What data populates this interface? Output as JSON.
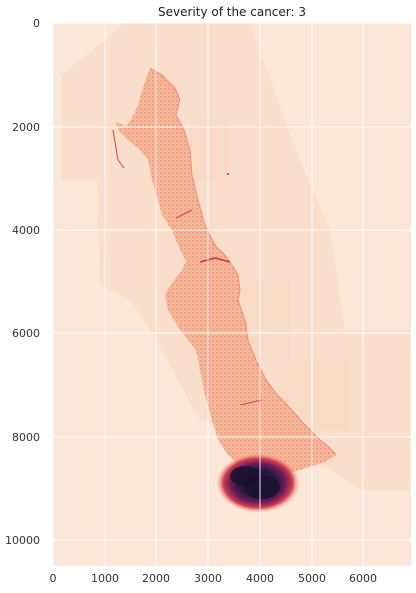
{
  "chart_data": {
    "type": "heatmap",
    "title": "Severity of the cancer: 3",
    "xlabel": "",
    "ylabel": "",
    "xlim": [
      0,
      6900
    ],
    "ylim": [
      10500,
      0
    ],
    "x_ticks": [
      "0",
      "1000",
      "2000",
      "3000",
      "4000",
      "5000",
      "6000"
    ],
    "y_ticks": [
      "0",
      "2000",
      "4000",
      "6000",
      "8000",
      "10000"
    ],
    "grid": true,
    "colormap": "rocket",
    "colors": {
      "background": "#fbe7d8",
      "tissue_light": "#f7c9ad",
      "tissue_mid": "#f19a77",
      "tissue_dark": "#d8424a",
      "hotspot_core": "#1b1231",
      "hotspot_mid": "#6b1d5a",
      "hotspot_edge": "#d03b4e",
      "gridline": "#ffffff"
    },
    "hotspot_center": [
      3950,
      8900
    ]
  }
}
